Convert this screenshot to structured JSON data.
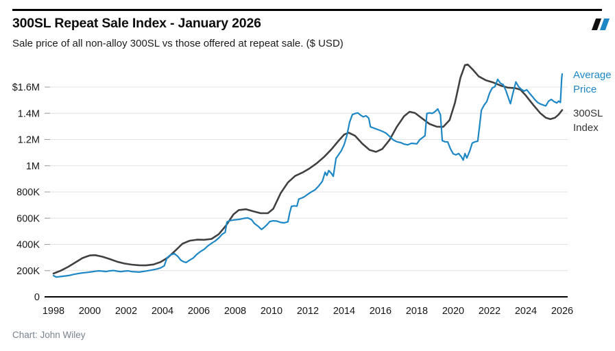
{
  "header": {
    "logo": "double-slash-logo"
  },
  "brand": {
    "logo_black": "#111111",
    "logo_blue": "#1d87c6"
  },
  "footer": {
    "credit": "Chart: John Wiley"
  },
  "chart_data": {
    "type": "line",
    "title": "300SL Repeat Sale Index - January 2026",
    "subtitle": "Sale price of all non-alloy 300SL vs those offered at repeat sale. ($ USD)",
    "xlabel": "",
    "ylabel": "",
    "x_ticks": [
      1998,
      2000,
      2002,
      2004,
      2006,
      2008,
      2010,
      2012,
      2014,
      2016,
      2018,
      2020,
      2022,
      2024,
      2026
    ],
    "xlim": [
      1997.5,
      2026.3
    ],
    "ylim_usd": [
      0,
      1800000
    ],
    "y_ticks": [
      {
        "value_k": 1600,
        "label": "$1.6M"
      },
      {
        "value_k": 1400,
        "label": "1.4M"
      },
      {
        "value_k": 1200,
        "label": "1.2M"
      },
      {
        "value_k": 1000,
        "label": "1M"
      },
      {
        "value_k": 800,
        "label": "800K"
      },
      {
        "value_k": 600,
        "label": "600K"
      },
      {
        "value_k": 400,
        "label": "400K"
      },
      {
        "value_k": 200,
        "label": "200K"
      },
      {
        "value_k": 0,
        "label": "0"
      }
    ],
    "grid": "horizontal-only",
    "legend_position": "right-outside",
    "values_unit": "thousands of USD",
    "series": [
      {
        "name": "300SL Index",
        "color": "#404040",
        "stroke_width": 2.6,
        "points_year_usd_k": [
          [
            1998.0,
            178
          ],
          [
            1998.4,
            200
          ],
          [
            1998.8,
            228
          ],
          [
            1999.2,
            262
          ],
          [
            1999.6,
            296
          ],
          [
            2000.0,
            316
          ],
          [
            2000.3,
            318
          ],
          [
            2000.7,
            306
          ],
          [
            2001.1,
            288
          ],
          [
            2001.5,
            268
          ],
          [
            2001.9,
            254
          ],
          [
            2002.3,
            246
          ],
          [
            2002.7,
            241
          ],
          [
            2003.1,
            240
          ],
          [
            2003.5,
            247
          ],
          [
            2003.9,
            266
          ],
          [
            2004.3,
            300
          ],
          [
            2004.7,
            352
          ],
          [
            2005.1,
            405
          ],
          [
            2005.5,
            428
          ],
          [
            2005.9,
            436
          ],
          [
            2006.3,
            435
          ],
          [
            2006.7,
            442
          ],
          [
            2007.1,
            478
          ],
          [
            2007.5,
            545
          ],
          [
            2007.9,
            628
          ],
          [
            2008.2,
            662
          ],
          [
            2008.6,
            668
          ],
          [
            2009.0,
            652
          ],
          [
            2009.4,
            638
          ],
          [
            2009.8,
            638
          ],
          [
            2010.1,
            672
          ],
          [
            2010.5,
            790
          ],
          [
            2010.9,
            872
          ],
          [
            2011.3,
            922
          ],
          [
            2011.7,
            948
          ],
          [
            2012.1,
            980
          ],
          [
            2012.5,
            1020
          ],
          [
            2012.9,
            1068
          ],
          [
            2013.3,
            1125
          ],
          [
            2013.7,
            1192
          ],
          [
            2014.0,
            1238
          ],
          [
            2014.25,
            1252
          ],
          [
            2014.6,
            1228
          ],
          [
            2015.0,
            1168
          ],
          [
            2015.4,
            1120
          ],
          [
            2015.75,
            1106
          ],
          [
            2016.1,
            1128
          ],
          [
            2016.5,
            1198
          ],
          [
            2016.9,
            1298
          ],
          [
            2017.3,
            1378
          ],
          [
            2017.6,
            1412
          ],
          [
            2017.9,
            1402
          ],
          [
            2018.3,
            1360
          ],
          [
            2018.7,
            1318
          ],
          [
            2019.1,
            1298
          ],
          [
            2019.45,
            1296
          ],
          [
            2019.8,
            1348
          ],
          [
            2020.1,
            1480
          ],
          [
            2020.4,
            1672
          ],
          [
            2020.65,
            1768
          ],
          [
            2020.8,
            1772
          ],
          [
            2021.1,
            1730
          ],
          [
            2021.4,
            1682
          ],
          [
            2021.8,
            1652
          ],
          [
            2022.2,
            1635
          ],
          [
            2022.6,
            1612
          ],
          [
            2023.0,
            1596
          ],
          [
            2023.4,
            1592
          ],
          [
            2023.7,
            1580
          ],
          [
            2024.0,
            1535
          ],
          [
            2024.4,
            1465
          ],
          [
            2024.8,
            1400
          ],
          [
            2025.1,
            1366
          ],
          [
            2025.35,
            1356
          ],
          [
            2025.6,
            1366
          ],
          [
            2025.8,
            1390
          ],
          [
            2026.0,
            1425
          ]
        ]
      },
      {
        "name": "Average Price",
        "color": "#1d87c6",
        "stroke_width": 2.2,
        "points_year_usd_k": [
          [
            1998.0,
            162
          ],
          [
            1998.15,
            151
          ],
          [
            1998.3,
            153
          ],
          [
            1998.5,
            157
          ],
          [
            1998.7,
            160
          ],
          [
            1998.9,
            164
          ],
          [
            1999.1,
            171
          ],
          [
            1999.3,
            176
          ],
          [
            1999.5,
            181
          ],
          [
            1999.7,
            184
          ],
          [
            1999.9,
            187
          ],
          [
            2000.1,
            191
          ],
          [
            2000.3,
            195
          ],
          [
            2000.5,
            198
          ],
          [
            2000.7,
            196
          ],
          [
            2000.9,
            193
          ],
          [
            2001.1,
            198
          ],
          [
            2001.3,
            201
          ],
          [
            2001.5,
            196
          ],
          [
            2001.7,
            192
          ],
          [
            2001.9,
            196
          ],
          [
            2002.1,
            198
          ],
          [
            2002.3,
            193
          ],
          [
            2002.5,
            191
          ],
          [
            2002.7,
            189
          ],
          [
            2002.9,
            193
          ],
          [
            2003.1,
            197
          ],
          [
            2003.3,
            202
          ],
          [
            2003.5,
            207
          ],
          [
            2003.7,
            213
          ],
          [
            2003.9,
            221
          ],
          [
            2004.1,
            237
          ],
          [
            2004.25,
            298
          ],
          [
            2004.45,
            320
          ],
          [
            2004.65,
            330
          ],
          [
            2004.85,
            308
          ],
          [
            2005.0,
            281
          ],
          [
            2005.15,
            268
          ],
          [
            2005.3,
            262
          ],
          [
            2005.5,
            281
          ],
          [
            2005.7,
            297
          ],
          [
            2005.9,
            326
          ],
          [
            2006.1,
            346
          ],
          [
            2006.3,
            363
          ],
          [
            2006.5,
            389
          ],
          [
            2006.7,
            409
          ],
          [
            2006.9,
            426
          ],
          [
            2007.1,
            449
          ],
          [
            2007.3,
            479
          ],
          [
            2007.45,
            492
          ],
          [
            2007.55,
            571
          ],
          [
            2007.7,
            581
          ],
          [
            2007.9,
            586
          ],
          [
            2008.1,
            589
          ],
          [
            2008.3,
            593
          ],
          [
            2008.5,
            599
          ],
          [
            2008.7,
            602
          ],
          [
            2008.9,
            589
          ],
          [
            2009.05,
            561
          ],
          [
            2009.25,
            540
          ],
          [
            2009.45,
            514
          ],
          [
            2009.6,
            530
          ],
          [
            2009.75,
            550
          ],
          [
            2009.9,
            574
          ],
          [
            2010.1,
            580
          ],
          [
            2010.3,
            578
          ],
          [
            2010.5,
            568
          ],
          [
            2010.7,
            564
          ],
          [
            2010.9,
            572
          ],
          [
            2011.0,
            640
          ],
          [
            2011.1,
            690
          ],
          [
            2011.25,
            694
          ],
          [
            2011.4,
            692
          ],
          [
            2011.5,
            746
          ],
          [
            2011.65,
            753
          ],
          [
            2011.8,
            763
          ],
          [
            2012.0,
            783
          ],
          [
            2012.2,
            801
          ],
          [
            2012.4,
            816
          ],
          [
            2012.6,
            846
          ],
          [
            2012.8,
            882
          ],
          [
            2012.95,
            950
          ],
          [
            2013.05,
            926
          ],
          [
            2013.15,
            963
          ],
          [
            2013.3,
            941
          ],
          [
            2013.4,
            919
          ],
          [
            2013.55,
            1056
          ],
          [
            2013.7,
            1086
          ],
          [
            2013.85,
            1116
          ],
          [
            2014.0,
            1162
          ],
          [
            2014.15,
            1232
          ],
          [
            2014.3,
            1332
          ],
          [
            2014.45,
            1390
          ],
          [
            2014.6,
            1398
          ],
          [
            2014.75,
            1403
          ],
          [
            2014.9,
            1386
          ],
          [
            2015.05,
            1373
          ],
          [
            2015.2,
            1381
          ],
          [
            2015.35,
            1363
          ],
          [
            2015.45,
            1296
          ],
          [
            2015.6,
            1289
          ],
          [
            2015.75,
            1281
          ],
          [
            2015.9,
            1273
          ],
          [
            2016.1,
            1263
          ],
          [
            2016.3,
            1249
          ],
          [
            2016.5,
            1223
          ],
          [
            2016.7,
            1197
          ],
          [
            2016.9,
            1183
          ],
          [
            2017.1,
            1177
          ],
          [
            2017.3,
            1165
          ],
          [
            2017.5,
            1159
          ],
          [
            2017.7,
            1171
          ],
          [
            2017.85,
            1169
          ],
          [
            2018.0,
            1167
          ],
          [
            2018.15,
            1197
          ],
          [
            2018.3,
            1213
          ],
          [
            2018.45,
            1229
          ],
          [
            2018.55,
            1398
          ],
          [
            2018.7,
            1403
          ],
          [
            2018.85,
            1399
          ],
          [
            2019.0,
            1413
          ],
          [
            2019.15,
            1433
          ],
          [
            2019.3,
            1389
          ],
          [
            2019.4,
            1191
          ],
          [
            2019.55,
            1183
          ],
          [
            2019.7,
            1181
          ],
          [
            2019.85,
            1129
          ],
          [
            2020.0,
            1091
          ],
          [
            2020.15,
            1083
          ],
          [
            2020.3,
            1093
          ],
          [
            2020.45,
            1069
          ],
          [
            2020.55,
            1043
          ],
          [
            2020.65,
            1093
          ],
          [
            2020.75,
            1059
          ],
          [
            2020.9,
            1109
          ],
          [
            2021.05,
            1173
          ],
          [
            2021.2,
            1183
          ],
          [
            2021.35,
            1187
          ],
          [
            2021.45,
            1301
          ],
          [
            2021.55,
            1423
          ],
          [
            2021.7,
            1463
          ],
          [
            2021.85,
            1489
          ],
          [
            2022.0,
            1553
          ],
          [
            2022.15,
            1593
          ],
          [
            2022.3,
            1603
          ],
          [
            2022.45,
            1659
          ],
          [
            2022.6,
            1629
          ],
          [
            2022.75,
            1619
          ],
          [
            2022.9,
            1573
          ],
          [
            2023.05,
            1513
          ],
          [
            2023.15,
            1473
          ],
          [
            2023.3,
            1559
          ],
          [
            2023.45,
            1639
          ],
          [
            2023.6,
            1603
          ],
          [
            2023.75,
            1583
          ],
          [
            2023.9,
            1569
          ],
          [
            2024.05,
            1579
          ],
          [
            2024.2,
            1553
          ],
          [
            2024.35,
            1529
          ],
          [
            2024.5,
            1503
          ],
          [
            2024.65,
            1483
          ],
          [
            2024.8,
            1471
          ],
          [
            2024.95,
            1463
          ],
          [
            2025.1,
            1456
          ],
          [
            2025.25,
            1493
          ],
          [
            2025.4,
            1506
          ],
          [
            2025.55,
            1489
          ],
          [
            2025.7,
            1479
          ],
          [
            2025.8,
            1493
          ],
          [
            2025.9,
            1483
          ],
          [
            2025.97,
            1663
          ],
          [
            2026.0,
            1700
          ]
        ]
      }
    ]
  }
}
